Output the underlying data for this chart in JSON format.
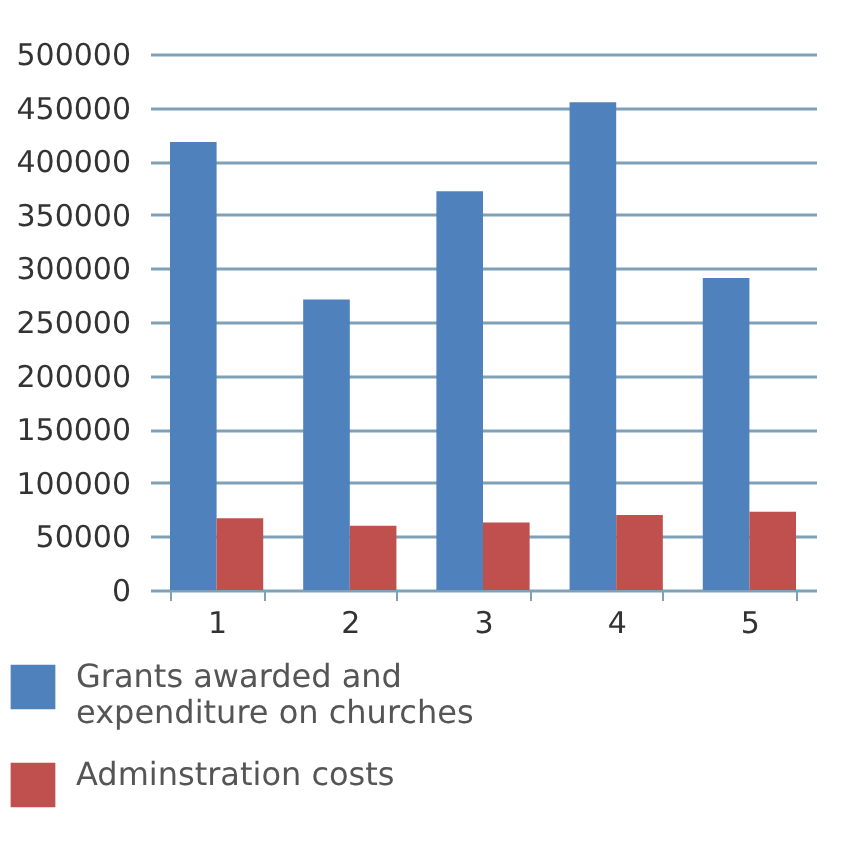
{
  "chart_data": {
    "type": "bar",
    "categories": [
      "1",
      "2",
      "3",
      "4",
      "5"
    ],
    "series": [
      {
        "name": "Grants awarded and expenditure on churches",
        "color": "#4f81bd",
        "values": [
          418000,
          271000,
          372000,
          455000,
          291000
        ]
      },
      {
        "name": "Adminstration costs",
        "color": "#c0504d",
        "values": [
          67000,
          60000,
          63000,
          70000,
          73000
        ]
      }
    ],
    "ylim": [
      0,
      500000
    ],
    "yticks": [
      0,
      50000,
      100000,
      150000,
      200000,
      250000,
      300000,
      350000,
      400000,
      450000,
      500000
    ],
    "grid": "y",
    "legend": "bottom"
  }
}
